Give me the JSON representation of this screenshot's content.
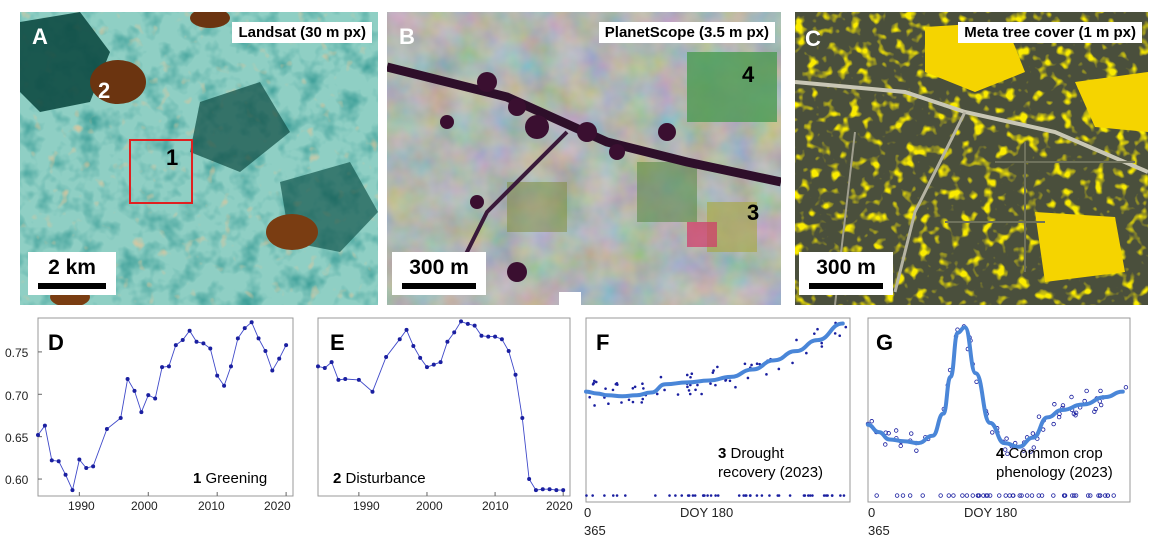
{
  "panels": {
    "a": {
      "letter": "A",
      "title": "Landsat (30 m px)",
      "scale": "2 km",
      "marker1": "1",
      "marker2": "2"
    },
    "b": {
      "letter": "B",
      "title": "PlanetScope (3.5 m px)",
      "scale": "300 m",
      "marker4": "4",
      "marker3": "3"
    },
    "c": {
      "letter": "C",
      "title": "Meta tree cover (1 m px)",
      "scale": "300 m"
    }
  },
  "plots": {
    "d": {
      "letter": "D",
      "num": "1",
      "caption": "Greening",
      "yticks": [
        "0.75",
        "0.70",
        "0.65",
        "0.60"
      ],
      "xticks": [
        "1990",
        "2000",
        "2010",
        "2020"
      ]
    },
    "e": {
      "letter": "E",
      "num": "2",
      "caption": "Disturbance",
      "xticks": [
        "1990",
        "2000",
        "2010",
        "2020"
      ]
    },
    "f": {
      "letter": "F",
      "num": "3",
      "caption1": "Drought",
      "caption2": "recovery (2023)",
      "x0": "0",
      "x1": "DOY 180",
      "x2": "365"
    },
    "g": {
      "letter": "G",
      "num": "4",
      "caption1": "Common crop",
      "caption2": "phenology (2023)",
      "x0": "0",
      "x1": "DOY 180",
      "x2": "365"
    }
  },
  "colors": {
    "line": "#3f49c9",
    "fit": "#4a86d8",
    "tree": "#f5d400"
  },
  "chart_data": [
    {
      "type": "line",
      "panel": "D",
      "x": [
        1984,
        1985,
        1986,
        1987,
        1988,
        1989,
        1990,
        1991,
        1992,
        1994,
        1996,
        1997,
        1998,
        1999,
        2000,
        2001,
        2002,
        2003,
        2004,
        2005,
        2006,
        2007,
        2008,
        2009,
        2010,
        2011,
        2012,
        2013,
        2014,
        2015,
        2016,
        2017,
        2018,
        2019,
        2020
      ],
      "y": [
        0.652,
        0.663,
        0.622,
        0.621,
        0.605,
        0.587,
        0.623,
        0.613,
        0.615,
        0.659,
        0.672,
        0.718,
        0.704,
        0.679,
        0.699,
        0.695,
        0.732,
        0.733,
        0.758,
        0.764,
        0.775,
        0.762,
        0.76,
        0.754,
        0.722,
        0.71,
        0.733,
        0.766,
        0.778,
        0.785,
        0.766,
        0.751,
        0.728,
        0.742,
        0.758
      ],
      "ylim": [
        0.58,
        0.79
      ],
      "xlim": [
        1984,
        2021
      ]
    },
    {
      "type": "line",
      "panel": "E",
      "x": [
        1984,
        1985,
        1986,
        1987,
        1988,
        1990,
        1992,
        1994,
        1996,
        1997,
        1998,
        1999,
        2000,
        2001,
        2002,
        2003,
        2004,
        2005,
        2006,
        2007,
        2008,
        2009,
        2010,
        2011,
        2012,
        2013,
        2014,
        2015,
        2016,
        2017,
        2018,
        2019,
        2020
      ],
      "y": [
        0.733,
        0.731,
        0.738,
        0.717,
        0.718,
        0.717,
        0.703,
        0.744,
        0.765,
        0.776,
        0.757,
        0.743,
        0.732,
        0.735,
        0.738,
        0.762,
        0.773,
        0.786,
        0.783,
        0.781,
        0.769,
        0.768,
        0.768,
        0.765,
        0.751,
        0.723,
        0.672,
        0.6,
        0.587,
        0.588,
        0.588,
        0.587,
        0.587
      ],
      "ylim": [
        0.58,
        0.79
      ],
      "xlim": [
        1984,
        2021
      ]
    },
    {
      "type": "scatter",
      "panel": "F",
      "fit_x": [
        0,
        15,
        30,
        50,
        70,
        90,
        110,
        140,
        170,
        200,
        230,
        260,
        290,
        320,
        355
      ],
      "fit_y": [
        0.6,
        0.59,
        0.58,
        0.575,
        0.58,
        0.595,
        0.64,
        0.65,
        0.66,
        0.68,
        0.72,
        0.77,
        0.82,
        0.88,
        0.97
      ],
      "xlim": [
        0,
        365
      ],
      "ylim": [
        0,
        1
      ]
    },
    {
      "type": "scatter",
      "panel": "G",
      "fit_x": [
        0,
        15,
        30,
        50,
        70,
        90,
        105,
        115,
        125,
        135,
        150,
        170,
        190,
        210,
        230,
        250,
        270,
        300,
        330,
        355
      ],
      "fit_y": [
        0.42,
        0.38,
        0.34,
        0.33,
        0.32,
        0.36,
        0.48,
        0.68,
        0.92,
        0.95,
        0.7,
        0.43,
        0.32,
        0.3,
        0.35,
        0.46,
        0.5,
        0.53,
        0.57,
        0.6
      ],
      "xlim": [
        0,
        365
      ],
      "ylim": [
        0,
        1
      ]
    }
  ]
}
